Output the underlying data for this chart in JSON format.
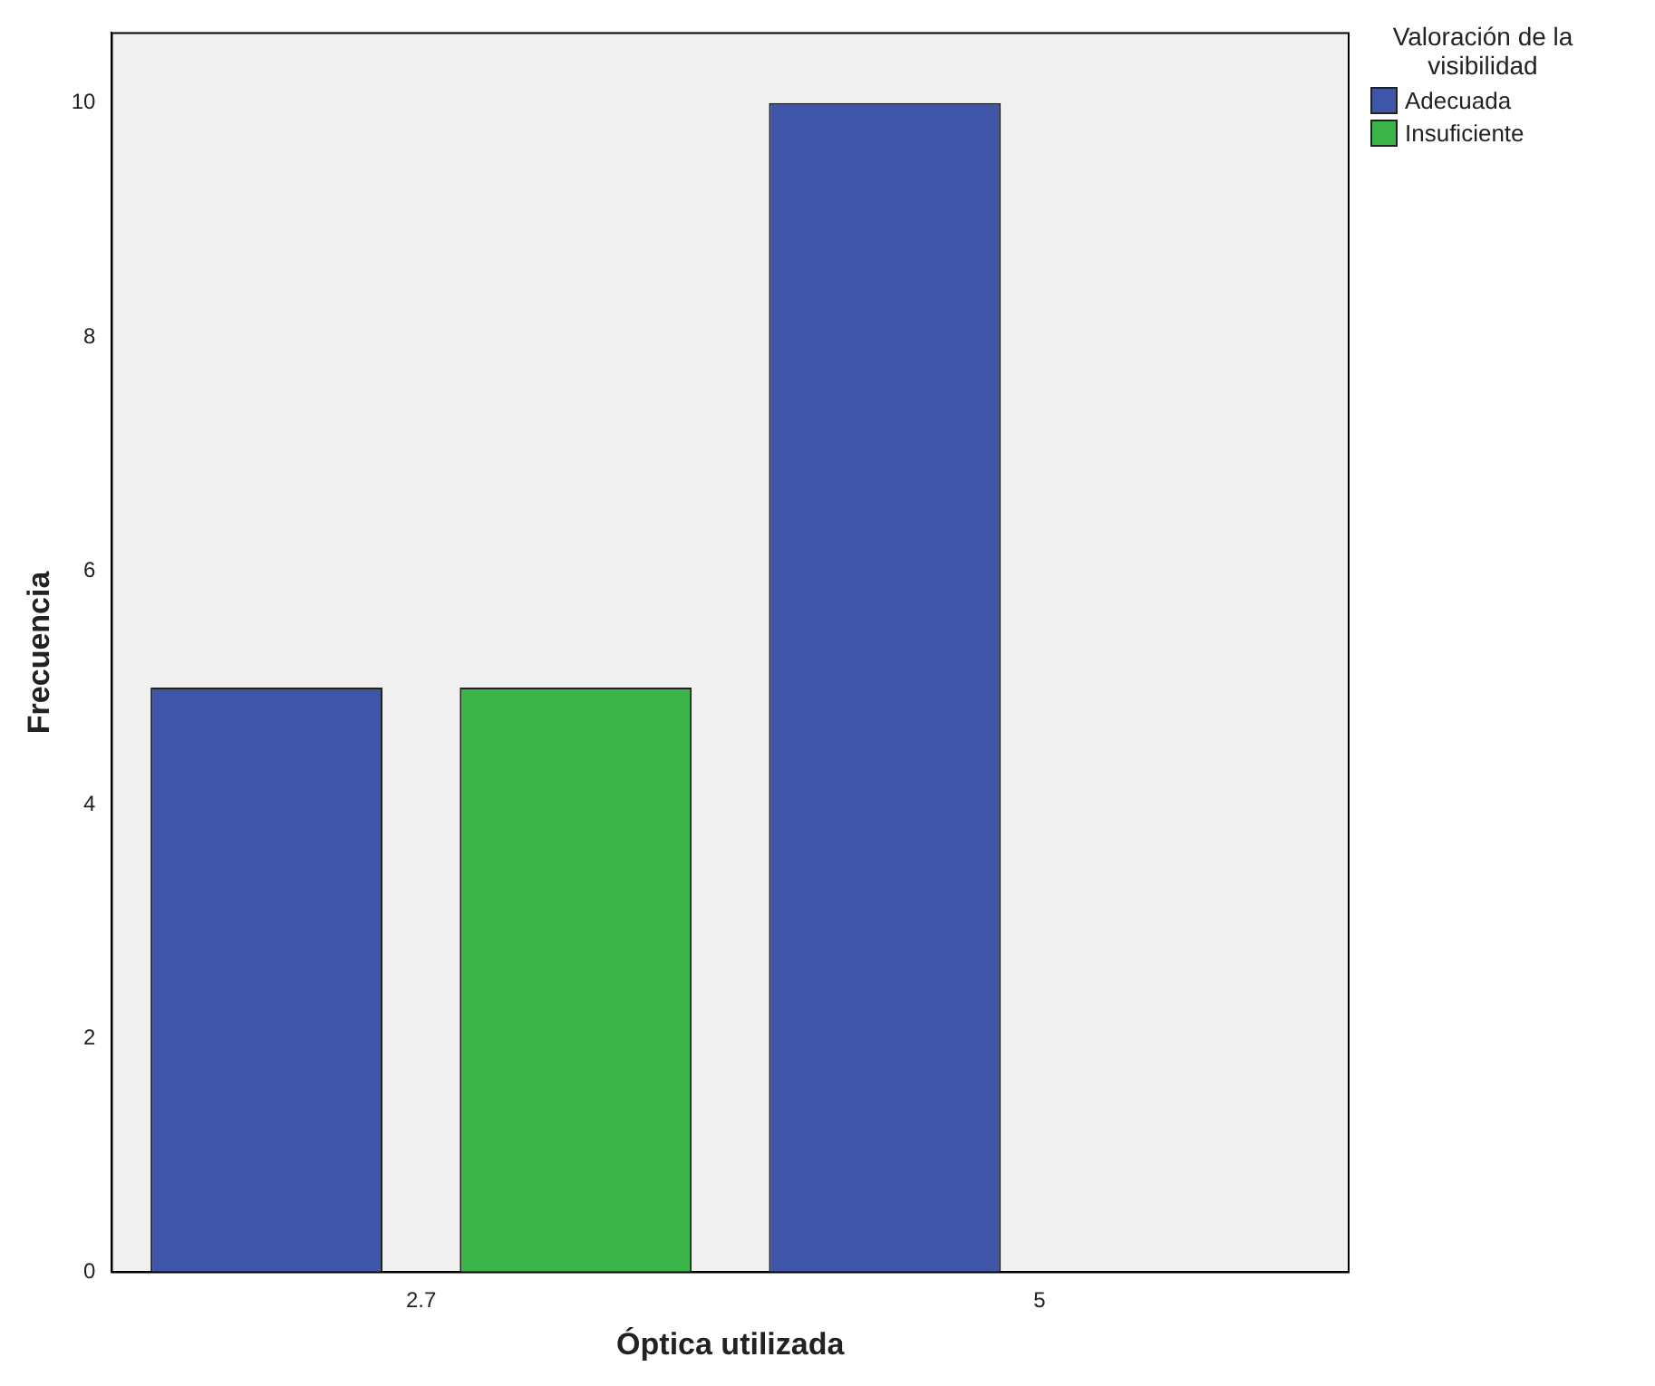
{
  "chart_data": {
    "type": "bar",
    "xlabel": "Óptica utilizada",
    "ylabel": "Frecuencia",
    "legend_title": "Valoración de la visibilidad",
    "categories": [
      "2.7",
      "5"
    ],
    "series": [
      {
        "name": "Adecuada",
        "color": "#3f55a8",
        "values": [
          5,
          10
        ]
      },
      {
        "name": "Insuficiente",
        "color": "#3bb44a",
        "values": [
          5,
          0
        ]
      }
    ],
    "ylim": [
      0,
      10.6
    ],
    "yticks": [
      0,
      2,
      4,
      6,
      8,
      10
    ],
    "grid": false,
    "legend": "top right"
  }
}
